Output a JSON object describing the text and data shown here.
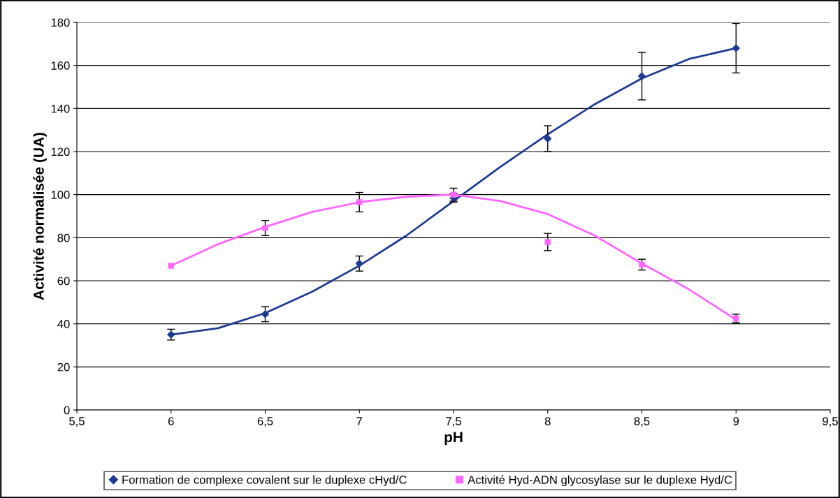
{
  "chart_data": {
    "type": "scatter",
    "xlabel": "pH",
    "ylabel": "Activité normalisée (UA)",
    "xlim": [
      5.5,
      9.5
    ],
    "xticks": [
      {
        "value": 5.5,
        "label": "5,5"
      },
      6,
      {
        "value": 6.5,
        "label": "6,5"
      },
      7,
      {
        "value": 7.5,
        "label": "7,5"
      },
      8,
      {
        "value": 8.5,
        "label": "8,5"
      },
      9,
      {
        "value": 9.5,
        "label": "9,5"
      }
    ],
    "ylim": [
      0,
      180
    ],
    "yticks": [
      0,
      20,
      40,
      60,
      80,
      100,
      120,
      140,
      160,
      180
    ],
    "grid": "y",
    "legend": "bottom",
    "series": [
      {
        "name": "Formation de complexe covalent sur le duplexe cHyd/C",
        "marker": "diamond",
        "color": "#1f3a93",
        "x": [
          6,
          6.5,
          7,
          7.5,
          8,
          8.5,
          9
        ],
        "values": [
          35,
          44.5,
          68,
          98.5,
          126,
          155,
          168
        ],
        "errors": [
          2.5,
          3.5,
          3.5,
          2,
          6,
          11,
          11.5
        ]
      },
      {
        "name": "Activité Hyd-ADN glycosylase sur le duplexe Hyd/C",
        "marker": "square",
        "color": "#ff66ff",
        "x": [
          6,
          6.5,
          7,
          7.5,
          8,
          8.5,
          9
        ],
        "values": [
          67,
          84.5,
          96.5,
          100,
          78,
          67.5,
          42.5
        ],
        "errors": [
          null,
          3.5,
          4.5,
          3,
          4,
          2.5,
          2
        ]
      },
      {
        "type": "line",
        "color": "#1f3a93",
        "x": [
          6,
          6.25,
          6.5,
          6.75,
          7,
          7.25,
          7.5,
          7.75,
          8,
          8.25,
          8.5,
          8.75,
          9
        ],
        "values": [
          35,
          38,
          45,
          55,
          67,
          81,
          97,
          113,
          128,
          142,
          154,
          163,
          168
        ]
      },
      {
        "type": "line",
        "color": "#ff66ff",
        "x": [
          6,
          6.25,
          6.5,
          6.75,
          7,
          7.25,
          7.5,
          7.75,
          8,
          8.25,
          8.5,
          8.75,
          9
        ],
        "values": [
          67,
          77,
          85,
          92,
          96.5,
          99,
          100,
          97,
          91,
          81,
          68,
          56,
          42
        ]
      }
    ]
  }
}
